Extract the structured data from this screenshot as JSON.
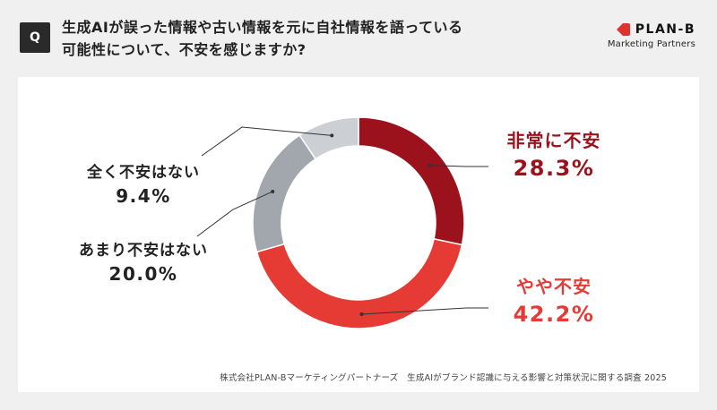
{
  "header": {
    "badge": "Q",
    "question_line1": "生成AIが誤った情報や古い情報を元に自社情報を語っている",
    "question_line2": "可能性について、不安を感じますか?"
  },
  "logo": {
    "name": "PLAN-B",
    "sub": "Marketing Partners",
    "color": "#e0332f"
  },
  "chart_data": {
    "type": "pie",
    "donut": true,
    "categories": [
      "非常に不安",
      "やや不安",
      "あまり不安はない",
      "全く不安はない"
    ],
    "values": [
      28.3,
      42.2,
      20.0,
      9.4
    ],
    "value_labels": [
      "28.3%",
      "42.2%",
      "20.0%",
      "9.4%"
    ],
    "colors": [
      "#9b121c",
      "#e63a35",
      "#a2a7ae",
      "#cccfd3"
    ],
    "label_colors": [
      "#9b121c",
      "#e63a35",
      "#222222",
      "#222222"
    ]
  },
  "source": "株式会社PLAN-Bマーケティングパートナーズ　生成AIがブランド認識に与える影響と対策状況に関する調査 2025"
}
